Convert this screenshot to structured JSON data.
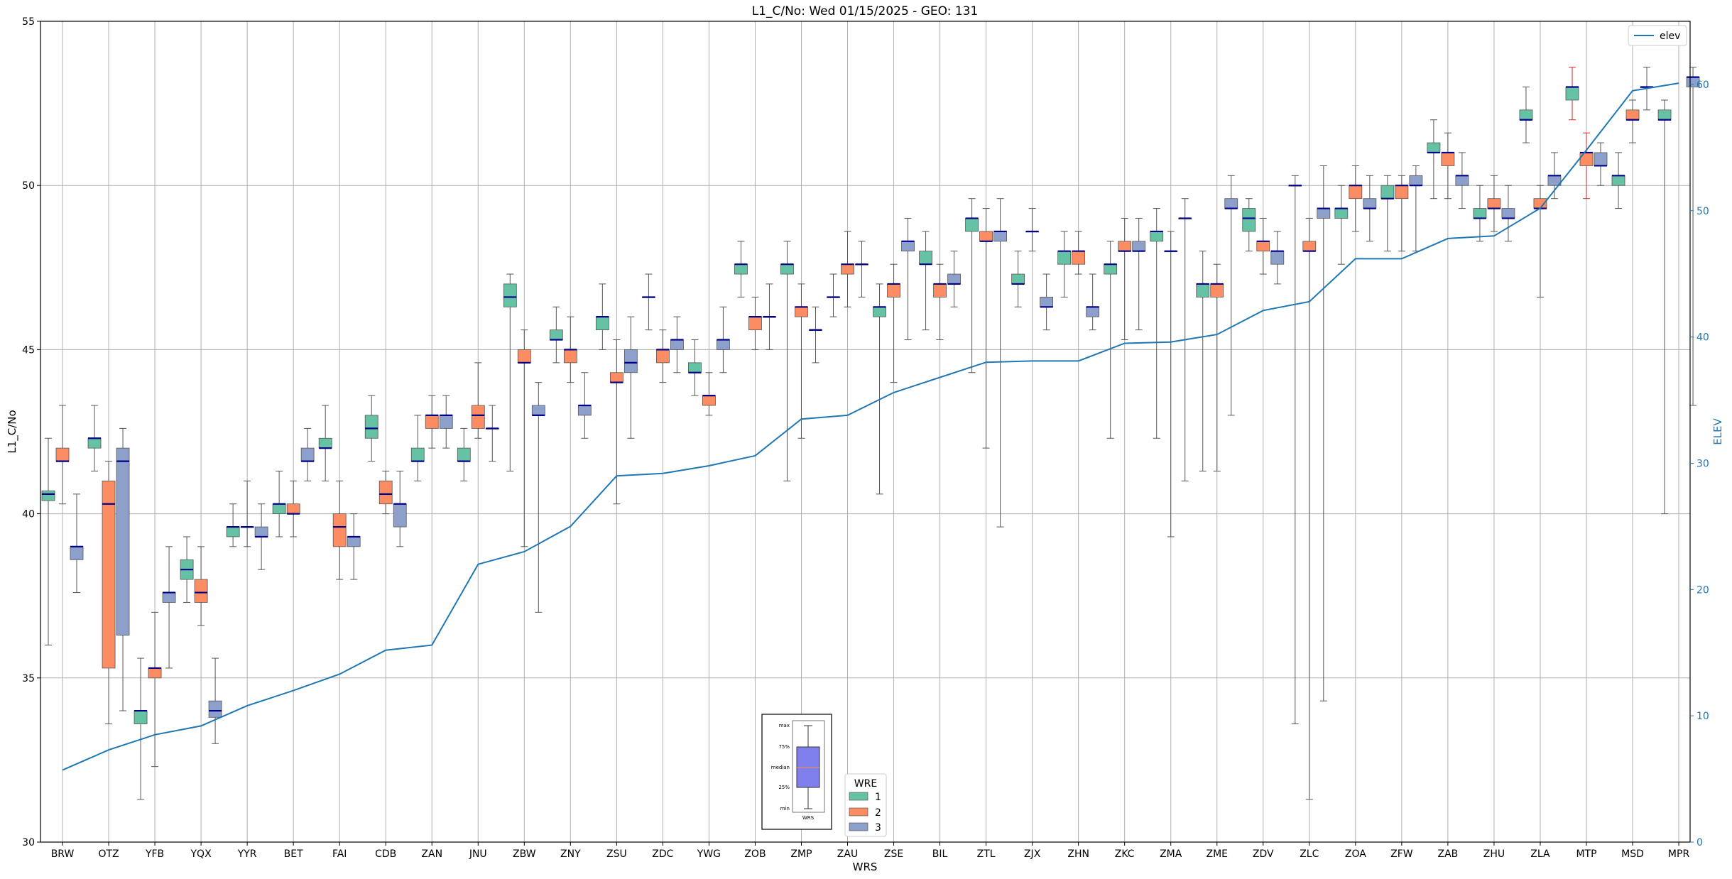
{
  "chart_data": {
    "type": "box",
    "title": "L1_C/No: Wed 01/15/2025 - GEO: 131",
    "xlabel": "WRS",
    "ylabel": "L1_C/No",
    "ylabel_right": "ELEV",
    "ylim": [
      30,
      55
    ],
    "ylim_right": [
      0,
      65
    ],
    "yticks": [
      30,
      35,
      40,
      45,
      50,
      55
    ],
    "yticks_right": [
      0,
      10,
      20,
      30,
      40,
      50,
      60
    ],
    "grid": true,
    "colors": {
      "wre1": "#66c2a5",
      "wre2": "#fc8d62",
      "wre3": "#8da0cb",
      "elev": "#1f77b4",
      "median": "#00008b",
      "whisker": "#555555",
      "outlier_whisker": "#d62728"
    },
    "categories": [
      "BRW",
      "OTZ",
      "YFB",
      "YQX",
      "YYR",
      "BET",
      "FAI",
      "CDB",
      "ZAN",
      "JNU",
      "ZBW",
      "ZNY",
      "ZSU",
      "ZDC",
      "YWG",
      "ZOB",
      "ZMP",
      "ZAU",
      "ZSE",
      "BIL",
      "ZTL",
      "ZJX",
      "ZHN",
      "ZKC",
      "ZMA",
      "ZME",
      "ZDV",
      "ZLC",
      "ZOA",
      "ZFW",
      "ZAB",
      "ZHU",
      "ZLA",
      "MTP",
      "MSD",
      "MPR"
    ],
    "elev": {
      "name": "elev",
      "values": [
        5.7,
        7.3,
        8.5,
        9.2,
        10.8,
        12.0,
        13.3,
        15.2,
        15.6,
        22.0,
        23.0,
        25.0,
        29.0,
        29.2,
        29.8,
        30.6,
        33.5,
        33.8,
        35.6,
        36.8,
        38.0,
        38.1,
        38.1,
        39.5,
        39.6,
        40.2,
        42.1,
        42.8,
        46.2,
        46.2,
        47.8,
        48.0,
        50.2,
        54.8,
        59.5,
        60.1
      ]
    },
    "legend": {
      "title": "WRE",
      "entries": [
        "1",
        "2",
        "3"
      ],
      "line_label": "elev"
    },
    "inset_legend": {
      "labels": [
        "max",
        "75%",
        "median",
        "25%",
        "min"
      ],
      "xlabel": "WRS"
    },
    "boxes": [
      {
        "cat": "BRW",
        "wre": 1,
        "min": 36.0,
        "q1": 40.4,
        "median": 40.6,
        "q3": 40.7,
        "max": 42.3
      },
      {
        "cat": "BRW",
        "wre": 2,
        "min": 40.3,
        "q1": 41.6,
        "median": 41.6,
        "q3": 42.0,
        "max": 43.3
      },
      {
        "cat": "BRW",
        "wre": 3,
        "min": 37.6,
        "q1": 38.6,
        "median": 39.0,
        "q3": 39.0,
        "max": 40.6
      },
      {
        "cat": "OTZ",
        "wre": 1,
        "min": 41.3,
        "q1": 42.0,
        "median": 42.3,
        "q3": 42.3,
        "max": 43.3
      },
      {
        "cat": "OTZ",
        "wre": 2,
        "min": 33.6,
        "q1": 35.3,
        "median": 40.3,
        "q3": 41.0,
        "max": 41.6
      },
      {
        "cat": "OTZ",
        "wre": 3,
        "min": 34.0,
        "q1": 36.3,
        "median": 41.6,
        "q3": 42.0,
        "max": 42.6
      },
      {
        "cat": "YFB",
        "wre": 1,
        "min": 31.3,
        "q1": 33.6,
        "median": 34.0,
        "q3": 34.0,
        "max": 35.6
      },
      {
        "cat": "YFB",
        "wre": 2,
        "min": 32.3,
        "q1": 35.0,
        "median": 35.3,
        "q3": 35.3,
        "max": 37.0
      },
      {
        "cat": "YFB",
        "wre": 3,
        "min": 35.3,
        "q1": 37.3,
        "median": 37.6,
        "q3": 37.6,
        "max": 39.0
      },
      {
        "cat": "YQX",
        "wre": 1,
        "min": 37.3,
        "q1": 38.0,
        "median": 38.3,
        "q3": 38.6,
        "max": 39.3
      },
      {
        "cat": "YQX",
        "wre": 2,
        "min": 36.6,
        "q1": 37.3,
        "median": 37.6,
        "q3": 38.0,
        "max": 39.0
      },
      {
        "cat": "YQX",
        "wre": 3,
        "min": 33.0,
        "q1": 33.8,
        "median": 34.0,
        "q3": 34.3,
        "max": 35.6
      },
      {
        "cat": "YYR",
        "wre": 1,
        "min": 39.0,
        "q1": 39.3,
        "median": 39.6,
        "q3": 39.6,
        "max": 40.3
      },
      {
        "cat": "YYR",
        "wre": 2,
        "min": 39.0,
        "q1": 39.6,
        "median": 39.6,
        "q3": 39.6,
        "max": 41.0
      },
      {
        "cat": "YYR",
        "wre": 3,
        "min": 38.3,
        "q1": 39.3,
        "median": 39.3,
        "q3": 39.6,
        "max": 40.3
      },
      {
        "cat": "BET",
        "wre": 1,
        "min": 39.3,
        "q1": 40.0,
        "median": 40.3,
        "q3": 40.3,
        "max": 41.3
      },
      {
        "cat": "BET",
        "wre": 2,
        "min": 39.3,
        "q1": 40.0,
        "median": 40.0,
        "q3": 40.3,
        "max": 41.0
      },
      {
        "cat": "BET",
        "wre": 3,
        "min": 41.0,
        "q1": 41.6,
        "median": 41.6,
        "q3": 42.0,
        "max": 42.6
      },
      {
        "cat": "FAI",
        "wre": 1,
        "min": 41.0,
        "q1": 42.0,
        "median": 42.0,
        "q3": 42.3,
        "max": 43.3
      },
      {
        "cat": "FAI",
        "wre": 2,
        "min": 38.0,
        "q1": 39.0,
        "median": 39.6,
        "q3": 40.0,
        "max": 41.0
      },
      {
        "cat": "FAI",
        "wre": 3,
        "min": 38.0,
        "q1": 39.0,
        "median": 39.3,
        "q3": 39.3,
        "max": 40.0
      },
      {
        "cat": "CDB",
        "wre": 1,
        "min": 41.6,
        "q1": 42.3,
        "median": 42.6,
        "q3": 43.0,
        "max": 43.6
      },
      {
        "cat": "CDB",
        "wre": 2,
        "min": 40.0,
        "q1": 40.3,
        "median": 40.6,
        "q3": 41.0,
        "max": 41.3
      },
      {
        "cat": "CDB",
        "wre": 3,
        "min": 39.0,
        "q1": 39.6,
        "median": 40.3,
        "q3": 40.3,
        "max": 41.3
      },
      {
        "cat": "ZAN",
        "wre": 1,
        "min": 41.0,
        "q1": 41.6,
        "median": 41.6,
        "q3": 42.0,
        "max": 43.0
      },
      {
        "cat": "ZAN",
        "wre": 2,
        "min": 42.0,
        "q1": 42.6,
        "median": 43.0,
        "q3": 43.0,
        "max": 43.6
      },
      {
        "cat": "ZAN",
        "wre": 3,
        "min": 42.0,
        "q1": 42.6,
        "median": 43.0,
        "q3": 43.0,
        "max": 43.6
      },
      {
        "cat": "JNU",
        "wre": 1,
        "min": 41.0,
        "q1": 41.6,
        "median": 41.6,
        "q3": 42.0,
        "max": 42.6
      },
      {
        "cat": "JNU",
        "wre": 2,
        "min": 42.3,
        "q1": 42.6,
        "median": 43.0,
        "q3": 43.3,
        "max": 44.6
      },
      {
        "cat": "JNU",
        "wre": 3,
        "min": 41.6,
        "q1": 42.6,
        "median": 42.6,
        "q3": 42.6,
        "max": 43.3
      },
      {
        "cat": "ZBW",
        "wre": 1,
        "min": 41.3,
        "q1": 46.3,
        "median": 46.6,
        "q3": 47.0,
        "max": 47.3
      },
      {
        "cat": "ZBW",
        "wre": 2,
        "min": 39.0,
        "q1": 44.6,
        "median": 44.6,
        "q3": 45.0,
        "max": 45.6
      },
      {
        "cat": "ZBW",
        "wre": 3,
        "min": 37.0,
        "q1": 43.0,
        "median": 43.0,
        "q3": 43.3,
        "max": 44.0
      },
      {
        "cat": "ZNY",
        "wre": 1,
        "min": 44.6,
        "q1": 45.3,
        "median": 45.3,
        "q3": 45.6,
        "max": 46.3
      },
      {
        "cat": "ZNY",
        "wre": 2,
        "min": 44.0,
        "q1": 44.6,
        "median": 45.0,
        "q3": 45.0,
        "max": 46.0
      },
      {
        "cat": "ZNY",
        "wre": 3,
        "min": 42.3,
        "q1": 43.0,
        "median": 43.3,
        "q3": 43.3,
        "max": 44.3
      },
      {
        "cat": "ZSU",
        "wre": 1,
        "min": 45.0,
        "q1": 45.6,
        "median": 46.0,
        "q3": 46.0,
        "max": 47.0
      },
      {
        "cat": "ZSU",
        "wre": 2,
        "min": 40.3,
        "q1": 44.0,
        "median": 44.0,
        "q3": 44.3,
        "max": 45.3
      },
      {
        "cat": "ZSU",
        "wre": 3,
        "min": 42.3,
        "q1": 44.3,
        "median": 44.6,
        "q3": 45.0,
        "max": 46.0
      },
      {
        "cat": "ZDC",
        "wre": 1,
        "min": 45.6,
        "q1": 46.6,
        "median": 46.6,
        "q3": 46.6,
        "max": 47.3
      },
      {
        "cat": "ZDC",
        "wre": 2,
        "min": 44.0,
        "q1": 44.6,
        "median": 45.0,
        "q3": 45.0,
        "max": 45.6
      },
      {
        "cat": "ZDC",
        "wre": 3,
        "min": 44.3,
        "q1": 45.0,
        "median": 45.3,
        "q3": 45.3,
        "max": 46.0
      },
      {
        "cat": "YWG",
        "wre": 1,
        "min": 43.6,
        "q1": 44.3,
        "median": 44.3,
        "q3": 44.6,
        "max": 45.3
      },
      {
        "cat": "YWG",
        "wre": 2,
        "min": 43.0,
        "q1": 43.3,
        "median": 43.6,
        "q3": 43.6,
        "max": 44.3
      },
      {
        "cat": "YWG",
        "wre": 3,
        "min": 44.3,
        "q1": 45.0,
        "median": 45.3,
        "q3": 45.3,
        "max": 46.3
      },
      {
        "cat": "ZOB",
        "wre": 1,
        "min": 46.6,
        "q1": 47.3,
        "median": 47.6,
        "q3": 47.6,
        "max": 48.3
      },
      {
        "cat": "ZOB",
        "wre": 2,
        "min": 45.0,
        "q1": 45.6,
        "median": 46.0,
        "q3": 46.0,
        "max": 46.6
      },
      {
        "cat": "ZOB",
        "wre": 3,
        "min": 45.0,
        "q1": 46.0,
        "median": 46.0,
        "q3": 46.0,
        "max": 47.0
      },
      {
        "cat": "ZMP",
        "wre": 1,
        "min": 41.0,
        "q1": 47.3,
        "median": 47.6,
        "q3": 47.6,
        "max": 48.3
      },
      {
        "cat": "ZMP",
        "wre": 2,
        "min": 42.3,
        "q1": 46.0,
        "median": 46.3,
        "q3": 46.3,
        "max": 47.0
      },
      {
        "cat": "ZMP",
        "wre": 3,
        "min": 44.6,
        "q1": 45.6,
        "median": 45.6,
        "q3": 45.6,
        "max": 46.3
      },
      {
        "cat": "ZAU",
        "wre": 1,
        "min": 46.0,
        "q1": 46.6,
        "median": 46.6,
        "q3": 46.6,
        "max": 47.3
      },
      {
        "cat": "ZAU",
        "wre": 2,
        "min": 46.3,
        "q1": 47.3,
        "median": 47.6,
        "q3": 47.6,
        "max": 48.6
      },
      {
        "cat": "ZAU",
        "wre": 3,
        "min": 46.6,
        "q1": 47.6,
        "median": 47.6,
        "q3": 47.6,
        "max": 48.3
      },
      {
        "cat": "ZSE",
        "wre": 1,
        "min": 40.6,
        "q1": 46.0,
        "median": 46.3,
        "q3": 46.3,
        "max": 47.0
      },
      {
        "cat": "ZSE",
        "wre": 2,
        "min": 44.0,
        "q1": 46.6,
        "median": 47.0,
        "q3": 47.0,
        "max": 47.6
      },
      {
        "cat": "ZSE",
        "wre": 3,
        "min": 45.3,
        "q1": 48.0,
        "median": 48.3,
        "q3": 48.3,
        "max": 49.0
      },
      {
        "cat": "BIL",
        "wre": 1,
        "min": 45.6,
        "q1": 47.6,
        "median": 47.6,
        "q3": 48.0,
        "max": 48.6
      },
      {
        "cat": "BIL",
        "wre": 2,
        "min": 45.3,
        "q1": 46.6,
        "median": 47.0,
        "q3": 47.0,
        "max": 47.6
      },
      {
        "cat": "BIL",
        "wre": 3,
        "min": 46.3,
        "q1": 47.0,
        "median": 47.0,
        "q3": 47.3,
        "max": 48.0
      },
      {
        "cat": "ZTL",
        "wre": 1,
        "min": 44.3,
        "q1": 48.6,
        "median": 49.0,
        "q3": 49.0,
        "max": 49.6
      },
      {
        "cat": "ZTL",
        "wre": 2,
        "min": 42.0,
        "q1": 48.3,
        "median": 48.3,
        "q3": 48.6,
        "max": 49.3
      },
      {
        "cat": "ZTL",
        "wre": 3,
        "min": 39.6,
        "q1": 48.3,
        "median": 48.6,
        "q3": 48.6,
        "max": 49.6
      },
      {
        "cat": "ZJX",
        "wre": 1,
        "min": 46.3,
        "q1": 47.0,
        "median": 47.0,
        "q3": 47.3,
        "max": 48.0
      },
      {
        "cat": "ZJX",
        "wre": 2,
        "min": 48.0,
        "q1": 48.6,
        "median": 48.6,
        "q3": 48.6,
        "max": 49.3
      },
      {
        "cat": "ZJX",
        "wre": 3,
        "min": 45.6,
        "q1": 46.3,
        "median": 46.3,
        "q3": 46.6,
        "max": 47.3
      },
      {
        "cat": "ZHN",
        "wre": 1,
        "min": 46.6,
        "q1": 47.6,
        "median": 48.0,
        "q3": 48.0,
        "max": 48.6
      },
      {
        "cat": "ZHN",
        "wre": 2,
        "min": 47.3,
        "q1": 47.6,
        "median": 48.0,
        "q3": 48.0,
        "max": 48.6
      },
      {
        "cat": "ZHN",
        "wre": 3,
        "min": 45.6,
        "q1": 46.0,
        "median": 46.3,
        "q3": 46.3,
        "max": 47.3
      },
      {
        "cat": "ZKC",
        "wre": 1,
        "min": 42.3,
        "q1": 47.3,
        "median": 47.6,
        "q3": 47.6,
        "max": 48.3
      },
      {
        "cat": "ZKC",
        "wre": 2,
        "min": 45.3,
        "q1": 48.0,
        "median": 48.0,
        "q3": 48.3,
        "max": 49.0
      },
      {
        "cat": "ZKC",
        "wre": 3,
        "min": 45.6,
        "q1": 48.0,
        "median": 48.0,
        "q3": 48.3,
        "max": 49.0
      },
      {
        "cat": "ZMA",
        "wre": 1,
        "min": 42.3,
        "q1": 48.3,
        "median": 48.6,
        "q3": 48.6,
        "max": 49.3
      },
      {
        "cat": "ZMA",
        "wre": 2,
        "min": 39.3,
        "q1": 48.0,
        "median": 48.0,
        "q3": 48.0,
        "max": 48.6
      },
      {
        "cat": "ZMA",
        "wre": 3,
        "min": 41.0,
        "q1": 49.0,
        "median": 49.0,
        "q3": 49.0,
        "max": 49.6
      },
      {
        "cat": "ZME",
        "wre": 1,
        "min": 41.3,
        "q1": 46.6,
        "median": 47.0,
        "q3": 47.0,
        "max": 48.0
      },
      {
        "cat": "ZME",
        "wre": 2,
        "min": 41.3,
        "q1": 46.6,
        "median": 47.0,
        "q3": 47.0,
        "max": 47.6
      },
      {
        "cat": "ZME",
        "wre": 3,
        "min": 43.0,
        "q1": 49.3,
        "median": 49.3,
        "q3": 49.6,
        "max": 50.3
      },
      {
        "cat": "ZDV",
        "wre": 1,
        "min": 48.0,
        "q1": 48.6,
        "median": 49.0,
        "q3": 49.3,
        "max": 49.6
      },
      {
        "cat": "ZDV",
        "wre": 2,
        "min": 47.3,
        "q1": 48.0,
        "median": 48.3,
        "q3": 48.3,
        "max": 49.0
      },
      {
        "cat": "ZDV",
        "wre": 3,
        "min": 47.0,
        "q1": 47.6,
        "median": 48.0,
        "q3": 48.0,
        "max": 48.6
      },
      {
        "cat": "ZLC",
        "wre": 1,
        "min": 33.6,
        "q1": 50.0,
        "median": 50.0,
        "q3": 50.0,
        "max": 50.3
      },
      {
        "cat": "ZLC",
        "wre": 2,
        "min": 31.3,
        "q1": 48.0,
        "median": 48.0,
        "q3": 48.3,
        "max": 49.0
      },
      {
        "cat": "ZLC",
        "wre": 3,
        "min": 34.3,
        "q1": 49.0,
        "median": 49.3,
        "q3": 49.3,
        "max": 50.6
      },
      {
        "cat": "ZOA",
        "wre": 1,
        "min": 47.6,
        "q1": 49.0,
        "median": 49.3,
        "q3": 49.3,
        "max": 50.0
      },
      {
        "cat": "ZOA",
        "wre": 2,
        "min": 48.6,
        "q1": 49.6,
        "median": 50.0,
        "q3": 50.0,
        "max": 50.6
      },
      {
        "cat": "ZOA",
        "wre": 3,
        "min": 48.3,
        "q1": 49.3,
        "median": 49.3,
        "q3": 49.6,
        "max": 50.3
      },
      {
        "cat": "ZFW",
        "wre": 1,
        "min": 48.0,
        "q1": 49.6,
        "median": 49.6,
        "q3": 50.0,
        "max": 50.3
      },
      {
        "cat": "ZFW",
        "wre": 2,
        "min": 48.0,
        "q1": 49.6,
        "median": 50.0,
        "q3": 50.0,
        "max": 50.3
      },
      {
        "cat": "ZFW",
        "wre": 3,
        "min": 48.0,
        "q1": 50.0,
        "median": 50.0,
        "q3": 50.3,
        "max": 50.6
      },
      {
        "cat": "ZAB",
        "wre": 1,
        "min": 49.6,
        "q1": 51.0,
        "median": 51.0,
        "q3": 51.3,
        "max": 52.0
      },
      {
        "cat": "ZAB",
        "wre": 2,
        "min": 49.6,
        "q1": 50.6,
        "median": 51.0,
        "q3": 51.0,
        "max": 51.6
      },
      {
        "cat": "ZAB",
        "wre": 3,
        "min": 49.3,
        "q1": 50.0,
        "median": 50.3,
        "q3": 50.3,
        "max": 51.0
      },
      {
        "cat": "ZHU",
        "wre": 1,
        "min": 48.3,
        "q1": 49.0,
        "median": 49.0,
        "q3": 49.3,
        "max": 50.0
      },
      {
        "cat": "ZHU",
        "wre": 2,
        "min": 48.6,
        "q1": 49.3,
        "median": 49.3,
        "q3": 49.6,
        "max": 50.3
      },
      {
        "cat": "ZHU",
        "wre": 3,
        "min": 48.3,
        "q1": 49.0,
        "median": 49.0,
        "q3": 49.3,
        "max": 50.0
      },
      {
        "cat": "ZLA",
        "wre": 1,
        "min": 51.3,
        "q1": 52.0,
        "median": 52.0,
        "q3": 52.3,
        "max": 53.0
      },
      {
        "cat": "ZLA",
        "wre": 2,
        "min": 46.6,
        "q1": 49.3,
        "median": 49.3,
        "q3": 49.6,
        "max": 50.0
      },
      {
        "cat": "ZLA",
        "wre": 3,
        "min": 49.6,
        "q1": 50.0,
        "median": 50.3,
        "q3": 50.3,
        "max": 51.0
      },
      {
        "cat": "MTP",
        "wre": 1,
        "min": 52.0,
        "q1": 52.6,
        "median": 53.0,
        "q3": 53.0,
        "max": 53.6,
        "whisker_color": "red"
      },
      {
        "cat": "MTP",
        "wre": 2,
        "min": 49.6,
        "q1": 50.6,
        "median": 51.0,
        "q3": 51.0,
        "max": 51.6,
        "whisker_color": "red"
      },
      {
        "cat": "MTP",
        "wre": 3,
        "min": 50.0,
        "q1": 50.6,
        "median": 50.6,
        "q3": 51.0,
        "max": 51.3
      },
      {
        "cat": "MSD",
        "wre": 1,
        "min": 49.3,
        "q1": 50.0,
        "median": 50.3,
        "q3": 50.3,
        "max": 51.0
      },
      {
        "cat": "MSD",
        "wre": 2,
        "min": 51.3,
        "q1": 52.0,
        "median": 52.0,
        "q3": 52.3,
        "max": 52.6
      },
      {
        "cat": "MSD",
        "wre": 3,
        "min": 52.3,
        "q1": 53.0,
        "median": 53.0,
        "q3": 53.0,
        "max": 53.6
      },
      {
        "cat": "MPR",
        "wre": 1,
        "min": 40.0,
        "q1": 52.0,
        "median": 52.0,
        "q3": 52.3,
        "max": 52.6
      },
      {
        "cat": "MPR",
        "wre": 3,
        "min": 43.3,
        "q1": 53.0,
        "median": 53.3,
        "q3": 53.3,
        "max": 53.6
      }
    ]
  }
}
